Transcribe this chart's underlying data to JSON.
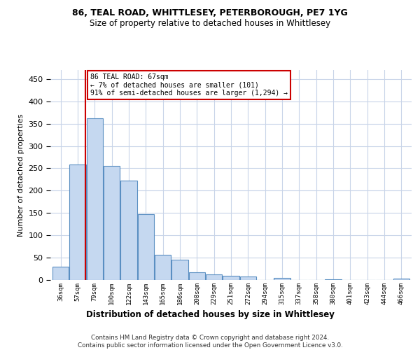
{
  "title1": "86, TEAL ROAD, WHITTLESEY, PETERBOROUGH, PE7 1YG",
  "title2": "Size of property relative to detached houses in Whittlesey",
  "xlabel": "Distribution of detached houses by size in Whittlesey",
  "ylabel": "Number of detached properties",
  "footer": "Contains HM Land Registry data © Crown copyright and database right 2024.\nContains public sector information licensed under the Open Government Licence v3.0.",
  "categories": [
    "36sqm",
    "57sqm",
    "79sqm",
    "100sqm",
    "122sqm",
    "143sqm",
    "165sqm",
    "186sqm",
    "208sqm",
    "229sqm",
    "251sqm",
    "272sqm",
    "294sqm",
    "315sqm",
    "337sqm",
    "358sqm",
    "380sqm",
    "401sqm",
    "423sqm",
    "444sqm",
    "466sqm"
  ],
  "values": [
    30,
    258,
    362,
    255,
    223,
    148,
    57,
    45,
    17,
    13,
    10,
    8,
    0,
    5,
    0,
    0,
    2,
    0,
    0,
    0,
    3
  ],
  "bar_color": "#c5d8f0",
  "bar_edge_color": "#5a8fc2",
  "annotation_text": "86 TEAL ROAD: 67sqm\n← 7% of detached houses are smaller (101)\n91% of semi-detached houses are larger (1,294) →",
  "annotation_box_color": "#ffffff",
  "annotation_box_edge": "#cc0000",
  "vline_color": "#cc0000",
  "ylim": [
    0,
    470
  ],
  "yticks": [
    0,
    50,
    100,
    150,
    200,
    250,
    300,
    350,
    400,
    450
  ],
  "background_color": "#ffffff",
  "grid_color": "#c8d4e8",
  "property_line_x": 1.45
}
